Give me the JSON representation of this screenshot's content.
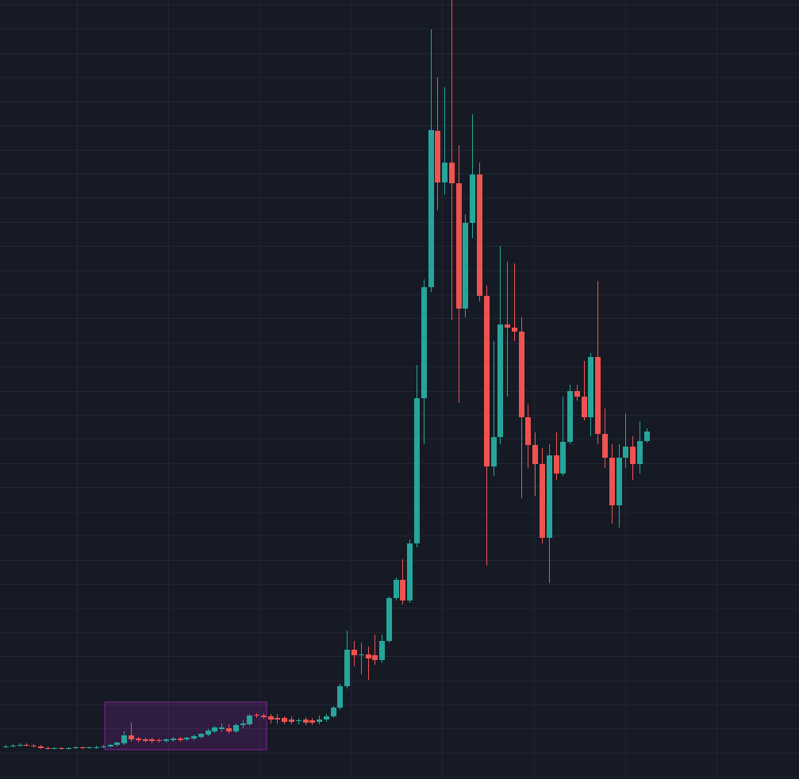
{
  "chart_data": {
    "type": "candlestick",
    "open": [
      58,
      59,
      60,
      61,
      60,
      59,
      57,
      56,
      57,
      56,
      57,
      58,
      57,
      57,
      58,
      59,
      61,
      63,
      73,
      69,
      68,
      68,
      67,
      66,
      67,
      69,
      68,
      69,
      71,
      74,
      78,
      81,
      82,
      78,
      86,
      87,
      99,
      98,
      97,
      95,
      95,
      93,
      91,
      93,
      92,
      90,
      93,
      97,
      108,
      135,
      181,
      174,
      175,
      174,
      168,
      192,
      246,
      269,
      243,
      315,
      498,
      638,
      835,
      770,
      795,
      769,
      611,
      719,
      780,
      627,
      412,
      449,
      591,
      587,
      582,
      474,
      439,
      415,
      322,
      426,
      403,
      443,
      507,
      500,
      474,
      550,
      453,
      423,
      363,
      423,
      437,
      415,
      444
    ],
    "high": [
      61,
      62,
      63,
      63,
      62,
      61,
      59,
      58,
      58,
      58,
      59,
      59,
      59,
      60,
      61,
      62,
      65,
      78,
      89,
      71,
      70,
      70,
      69,
      69,
      71,
      71,
      71,
      74,
      76,
      81,
      85,
      88,
      87,
      88,
      92,
      100,
      101,
      101,
      100,
      100,
      97,
      97,
      95,
      96,
      95,
      98,
      100,
      110,
      138,
      205,
      192,
      190,
      185,
      200,
      200,
      248,
      272,
      295,
      320,
      540,
      648,
      963,
      902,
      890,
      1000,
      817,
      730,
      856,
      795,
      640,
      570,
      690,
      670,
      668,
      600,
      490,
      455,
      435,
      440,
      455,
      500,
      515,
      515,
      545,
      555,
      646,
      485,
      440,
      440,
      479,
      450,
      469,
      460
    ],
    "low": [
      57,
      58,
      59,
      59,
      58,
      56,
      55,
      55,
      55,
      55,
      56,
      56,
      56,
      56,
      57,
      58,
      59,
      61,
      65,
      64,
      64,
      63,
      64,
      64,
      65,
      65,
      66,
      67,
      69,
      72,
      76,
      78,
      75,
      76,
      82,
      85,
      95,
      94,
      88,
      88,
      87,
      87,
      87,
      86,
      86,
      87,
      90,
      95,
      105,
      132,
      160,
      150,
      143,
      162,
      164,
      190,
      243,
      238,
      240,
      310,
      440,
      632,
      735,
      755,
      597,
      492,
      600,
      700,
      620,
      287,
      400,
      440,
      500,
      570,
      372,
      410,
      375,
      315,
      265,
      395,
      400,
      440,
      495,
      470,
      450,
      440,
      410,
      340,
      335,
      410,
      395,
      403,
      442
    ],
    "close": [
      59,
      60,
      61,
      60,
      59,
      57,
      56,
      57,
      56,
      57,
      58,
      57,
      58,
      58,
      59,
      61,
      64,
      73,
      68,
      67,
      66,
      66,
      66,
      68,
      69,
      67,
      70,
      72,
      75,
      79,
      83,
      83,
      78,
      86,
      88,
      98,
      98,
      96,
      93,
      93,
      90,
      90,
      92,
      89,
      89,
      93,
      97,
      108,
      135,
      181,
      174,
      175,
      170,
      168,
      192,
      246,
      269,
      243,
      315,
      498,
      638,
      836,
      770,
      795,
      769,
      611,
      719,
      780,
      627,
      412,
      449,
      591,
      587,
      582,
      474,
      439,
      415,
      322,
      426,
      403,
      443,
      507,
      500,
      474,
      550,
      453,
      423,
      363,
      423,
      437,
      415,
      444,
      456
    ],
    "up_color": "#26a69a",
    "down_color": "#ef5350",
    "background": "#161a25",
    "grid_color": "#222633",
    "xlim": [
      -0.8,
      113.9
    ],
    "xticks": [
      10.25,
      23.4,
      36.5,
      49.6,
      62.7,
      75.9,
      89,
      102.1
    ],
    "ylim": [
      18,
      1000
    ],
    "yticks": [
      994,
      964,
      933,
      903,
      872,
      842,
      811,
      781,
      751,
      720,
      690,
      659,
      629,
      599,
      568,
      538,
      507,
      477,
      447,
      416,
      386,
      355,
      325,
      294,
      264,
      234,
      203,
      173,
      142,
      112,
      82,
      51,
      21
    ],
    "grid": true,
    "highlight": {
      "x": [
        14.24,
        37.47
      ],
      "y": [
        55,
        115
      ],
      "color": "#9c27b0"
    }
  }
}
